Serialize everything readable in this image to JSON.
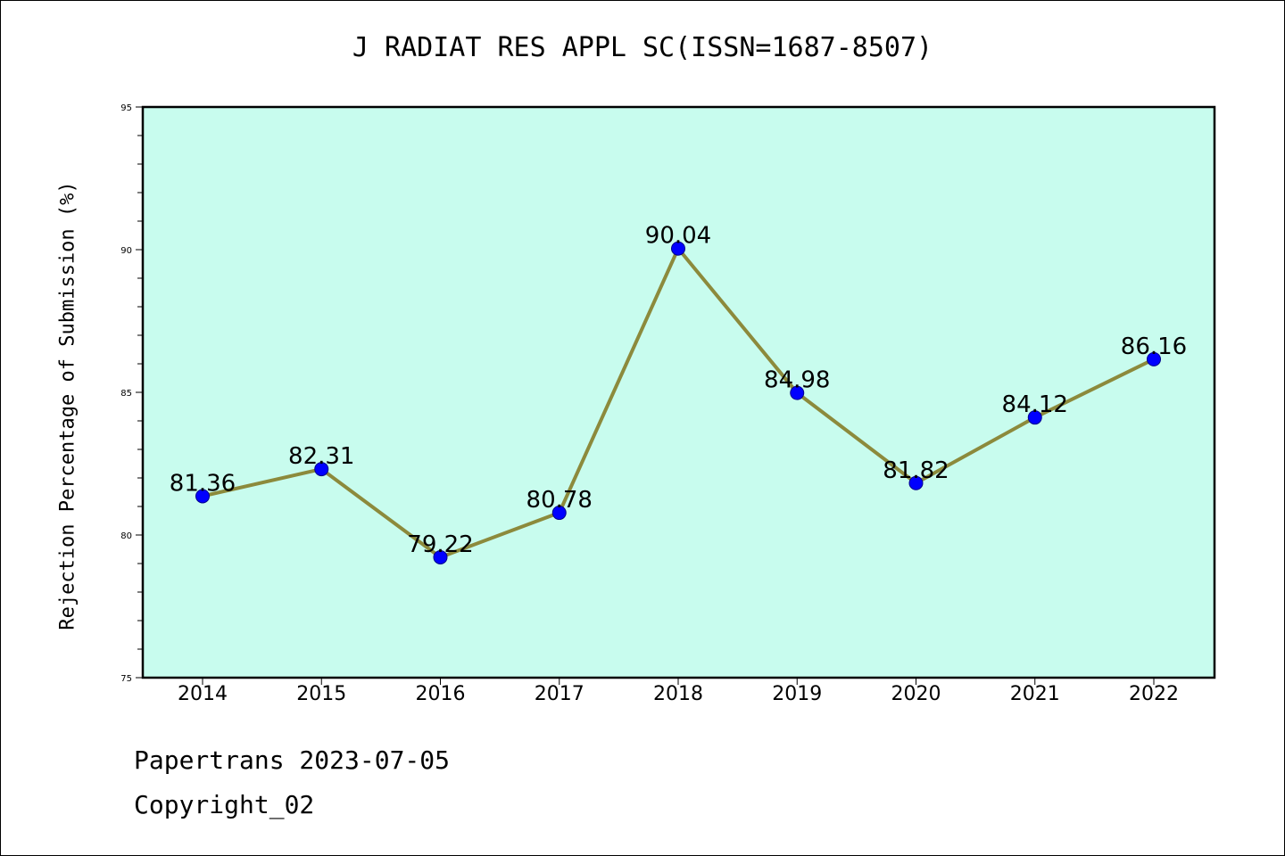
{
  "colors": {
    "plot_background": "#c8fcee",
    "line": "#8c8a3c",
    "marker": "#0000ff",
    "frame": "#000000"
  },
  "chart_data": {
    "type": "line",
    "title": "J RADIAT RES APPL SC(ISSN=1687-8507)",
    "xlabel": "",
    "ylabel": "Rejection Percentage of Submission (%)",
    "categories": [
      "2014",
      "2015",
      "2016",
      "2017",
      "2018",
      "2019",
      "2020",
      "2021",
      "2022"
    ],
    "values": [
      81.36,
      82.31,
      79.22,
      80.78,
      90.04,
      84.98,
      81.82,
      84.12,
      86.16
    ],
    "data_labels": [
      "81.36",
      "82.31",
      "79.22",
      "80.78",
      "90.04",
      "84.98",
      "81.82",
      "84.12",
      "86.16"
    ],
    "ylim": [
      75,
      95
    ],
    "yticks": [
      75,
      80,
      85,
      90,
      95
    ],
    "yticks_minor_step": 1,
    "grid": false,
    "legend": "none"
  },
  "footer": {
    "date_line": "Papertrans 2023-07-05",
    "copyright_line": "Copyright_02"
  }
}
